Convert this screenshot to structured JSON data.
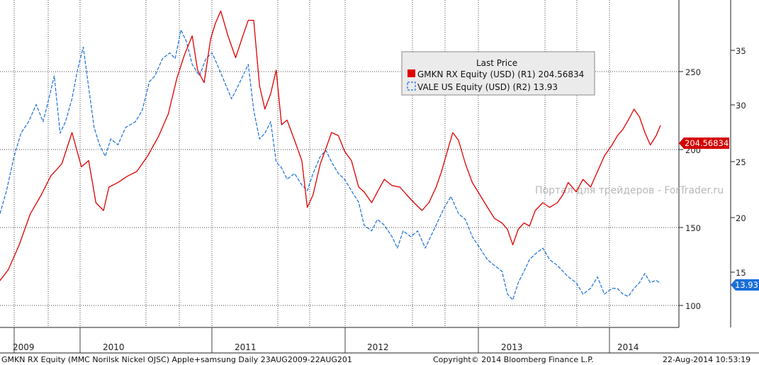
{
  "chart_data": {
    "type": "line",
    "legend_title": "Last Price",
    "legend_position": "top-center",
    "grid": true,
    "x_ticks": [
      "2009",
      "2010",
      "2011",
      "2012",
      "2013",
      "2014"
    ],
    "x_range": [
      "2009-08-23",
      "2014-08-22"
    ],
    "axes": {
      "inner_right": {
        "ticks": [
          "100",
          "150",
          "200",
          "250"
        ],
        "range": [
          75,
          285
        ]
      },
      "outer_right": {
        "ticks": [
          "15",
          "20",
          "25",
          "30",
          "35"
        ],
        "range": [
          10.1,
          38.6
        ]
      }
    },
    "series": [
      {
        "name": "GMKN RX Equity (USD)",
        "legend_text": "GMKN RX Equity (USD)  (R1) 204.56834",
        "axis": "inner_right",
        "color": "#e00000",
        "style": "solid",
        "last_label": "204.56834",
        "points": [
          [
            "2009-08-23",
            105
          ],
          [
            "2009-09-15",
            112
          ],
          [
            "2009-10-15",
            128
          ],
          [
            "2009-11-15",
            148
          ],
          [
            "2009-12-15",
            160
          ],
          [
            "2010-01-10",
            172
          ],
          [
            "2010-02-10",
            180
          ],
          [
            "2010-03-10",
            200
          ],
          [
            "2010-04-05",
            178
          ],
          [
            "2010-04-25",
            182
          ],
          [
            "2010-05-15",
            155
          ],
          [
            "2010-06-05",
            150
          ],
          [
            "2010-06-20",
            165
          ],
          [
            "2010-07-15",
            168
          ],
          [
            "2010-08-10",
            172
          ],
          [
            "2010-09-05",
            175
          ],
          [
            "2010-10-05",
            185
          ],
          [
            "2010-11-05",
            198
          ],
          [
            "2010-12-01",
            212
          ],
          [
            "2010-12-25",
            235
          ],
          [
            "2011-01-15",
            250
          ],
          [
            "2011-02-05",
            262
          ],
          [
            "2011-02-20",
            240
          ],
          [
            "2011-03-10",
            232
          ],
          [
            "2011-03-28",
            260
          ],
          [
            "2011-04-10",
            270
          ],
          [
            "2011-04-25",
            278
          ],
          [
            "2011-05-15",
            262
          ],
          [
            "2011-06-05",
            248
          ],
          [
            "2011-06-25",
            262
          ],
          [
            "2011-07-10",
            272
          ],
          [
            "2011-07-25",
            272
          ],
          [
            "2011-08-10",
            230
          ],
          [
            "2011-08-25",
            215
          ],
          [
            "2011-09-10",
            225
          ],
          [
            "2011-09-25",
            240
          ],
          [
            "2011-10-10",
            205
          ],
          [
            "2011-10-25",
            208
          ],
          [
            "2011-11-15",
            195
          ],
          [
            "2011-12-05",
            182
          ],
          [
            "2011-12-20",
            152
          ],
          [
            "2012-01-05",
            160
          ],
          [
            "2012-01-25",
            180
          ],
          [
            "2012-02-10",
            190
          ],
          [
            "2012-02-25",
            200
          ],
          [
            "2012-03-15",
            198
          ],
          [
            "2012-04-01",
            188
          ],
          [
            "2012-04-20",
            182
          ],
          [
            "2012-05-10",
            165
          ],
          [
            "2012-05-25",
            162
          ],
          [
            "2012-06-15",
            155
          ],
          [
            "2012-07-01",
            162
          ],
          [
            "2012-07-20",
            170
          ],
          [
            "2012-08-10",
            166
          ],
          [
            "2012-09-01",
            165
          ],
          [
            "2012-09-20",
            160
          ],
          [
            "2012-10-10",
            155
          ],
          [
            "2012-11-01",
            150
          ],
          [
            "2012-11-20",
            155
          ],
          [
            "2012-12-10",
            165
          ],
          [
            "2012-12-25",
            175
          ],
          [
            "2013-01-10",
            188
          ],
          [
            "2013-01-25",
            200
          ],
          [
            "2013-02-10",
            195
          ],
          [
            "2013-03-01",
            180
          ],
          [
            "2013-03-20",
            168
          ],
          [
            "2013-04-10",
            160
          ],
          [
            "2013-05-01",
            152
          ],
          [
            "2013-05-20",
            145
          ],
          [
            "2013-06-10",
            142
          ],
          [
            "2013-06-25",
            138
          ],
          [
            "2013-07-10",
            128
          ],
          [
            "2013-07-25",
            138
          ],
          [
            "2013-08-10",
            142
          ],
          [
            "2013-08-25",
            140
          ],
          [
            "2013-09-10",
            150
          ],
          [
            "2013-10-01",
            155
          ],
          [
            "2013-10-20",
            152
          ],
          [
            "2013-11-10",
            155
          ],
          [
            "2013-11-25",
            160
          ],
          [
            "2013-12-10",
            168
          ],
          [
            "2014-01-01",
            162
          ],
          [
            "2014-01-20",
            170
          ],
          [
            "2014-02-10",
            165
          ],
          [
            "2014-03-01",
            175
          ],
          [
            "2014-03-20",
            185
          ],
          [
            "2014-04-10",
            192
          ],
          [
            "2014-04-25",
            198
          ],
          [
            "2014-05-10",
            202
          ],
          [
            "2014-05-25",
            208
          ],
          [
            "2014-06-10",
            215
          ],
          [
            "2014-06-25",
            210
          ],
          [
            "2014-07-10",
            200
          ],
          [
            "2014-07-25",
            192
          ],
          [
            "2014-08-10",
            198
          ],
          [
            "2014-08-22",
            204.57
          ]
        ]
      },
      {
        "name": "VALE US Equity (USD)",
        "legend_text": "VALE US Equity (USD)  (R2)  13.93",
        "axis": "outer_right",
        "color": "#1a6fd8",
        "style": "dashed",
        "last_label": "13.93",
        "points": [
          [
            "2009-08-23",
            20
          ],
          [
            "2009-09-10",
            22
          ],
          [
            "2009-10-01",
            25
          ],
          [
            "2009-10-20",
            27
          ],
          [
            "2009-11-10",
            28
          ],
          [
            "2009-12-01",
            29.5
          ],
          [
            "2009-12-20",
            28
          ],
          [
            "2010-01-05",
            30
          ],
          [
            "2010-01-20",
            32
          ],
          [
            "2010-02-05",
            27
          ],
          [
            "2010-02-20",
            28
          ],
          [
            "2010-03-10",
            30
          ],
          [
            "2010-03-25",
            32.5
          ],
          [
            "2010-04-10",
            34.5
          ],
          [
            "2010-04-25",
            31
          ],
          [
            "2010-05-10",
            27.5
          ],
          [
            "2010-05-25",
            26
          ],
          [
            "2010-06-10",
            25
          ],
          [
            "2010-06-25",
            26.5
          ],
          [
            "2010-07-15",
            26
          ],
          [
            "2010-08-05",
            27.5
          ],
          [
            "2010-09-01",
            28
          ],
          [
            "2010-09-20",
            29
          ],
          [
            "2010-10-10",
            31.5
          ],
          [
            "2010-10-25",
            32
          ],
          [
            "2010-11-15",
            33.5
          ],
          [
            "2010-12-05",
            34
          ],
          [
            "2010-12-20",
            33.5
          ],
          [
            "2011-01-05",
            36
          ],
          [
            "2011-01-20",
            35
          ],
          [
            "2011-02-05",
            33
          ],
          [
            "2011-02-25",
            32
          ],
          [
            "2011-03-15",
            33.5
          ],
          [
            "2011-04-01",
            34
          ],
          [
            "2011-04-15",
            33
          ],
          [
            "2011-05-05",
            31.5
          ],
          [
            "2011-05-25",
            30
          ],
          [
            "2011-06-10",
            31
          ],
          [
            "2011-06-25",
            32
          ],
          [
            "2011-07-10",
            33
          ],
          [
            "2011-07-25",
            29
          ],
          [
            "2011-08-10",
            26.5
          ],
          [
            "2011-08-25",
            27
          ],
          [
            "2011-09-10",
            28
          ],
          [
            "2011-09-25",
            24.5
          ],
          [
            "2011-10-10",
            24
          ],
          [
            "2011-10-25",
            23
          ],
          [
            "2011-11-15",
            23.5
          ],
          [
            "2011-12-05",
            22.5
          ],
          [
            "2011-12-20",
            22
          ],
          [
            "2012-01-05",
            23.5
          ],
          [
            "2012-01-25",
            25
          ],
          [
            "2012-02-10",
            25.5
          ],
          [
            "2012-02-25",
            24.5
          ],
          [
            "2012-03-15",
            23.5
          ],
          [
            "2012-04-01",
            23
          ],
          [
            "2012-04-20",
            22
          ],
          [
            "2012-05-10",
            21
          ],
          [
            "2012-05-25",
            19
          ],
          [
            "2012-06-15",
            18.5
          ],
          [
            "2012-07-01",
            19.5
          ],
          [
            "2012-07-20",
            19
          ],
          [
            "2012-08-10",
            18
          ],
          [
            "2012-08-25",
            17
          ],
          [
            "2012-09-10",
            18.5
          ],
          [
            "2012-10-01",
            18
          ],
          [
            "2012-10-20",
            18.5
          ],
          [
            "2012-11-10",
            17
          ],
          [
            "2012-11-25",
            18
          ],
          [
            "2012-12-10",
            19
          ],
          [
            "2013-01-01",
            20.5
          ],
          [
            "2013-01-20",
            21.5
          ],
          [
            "2013-02-10",
            20
          ],
          [
            "2013-03-01",
            19.5
          ],
          [
            "2013-03-20",
            18
          ],
          [
            "2013-04-10",
            17
          ],
          [
            "2013-05-01",
            16
          ],
          [
            "2013-05-20",
            15.5
          ],
          [
            "2013-06-10",
            15
          ],
          [
            "2013-06-25",
            13
          ],
          [
            "2013-07-10",
            12.5
          ],
          [
            "2013-07-25",
            14
          ],
          [
            "2013-08-10",
            15
          ],
          [
            "2013-08-25",
            16
          ],
          [
            "2013-09-10",
            16.5
          ],
          [
            "2013-10-01",
            17
          ],
          [
            "2013-10-20",
            16
          ],
          [
            "2013-11-10",
            15.5
          ],
          [
            "2013-11-25",
            15
          ],
          [
            "2013-12-10",
            14.5
          ],
          [
            "2014-01-01",
            14
          ],
          [
            "2014-01-20",
            13
          ],
          [
            "2014-02-10",
            13.5
          ],
          [
            "2014-03-01",
            14.5
          ],
          [
            "2014-03-20",
            13
          ],
          [
            "2014-04-10",
            13.5
          ],
          [
            "2014-04-25",
            13.5
          ],
          [
            "2014-05-10",
            13
          ],
          [
            "2014-05-25",
            12.8
          ],
          [
            "2014-06-10",
            13.5
          ],
          [
            "2014-06-25",
            14
          ],
          [
            "2014-07-10",
            14.8
          ],
          [
            "2014-07-25",
            14
          ],
          [
            "2014-08-10",
            14.2
          ],
          [
            "2014-08-22",
            13.93
          ]
        ]
      }
    ]
  },
  "watermark": "Портал для трейдеров - ForTrader.ru",
  "footer": {
    "left": "GMKN RX Equity (MMC Norilsk Nickel OJSC) Apple+samsung  Daily 23AUG2009-22AUG201",
    "center": "Copyright© 2014 Bloomberg Finance L.P.",
    "right": "22-Aug-2014 10:53:19"
  }
}
